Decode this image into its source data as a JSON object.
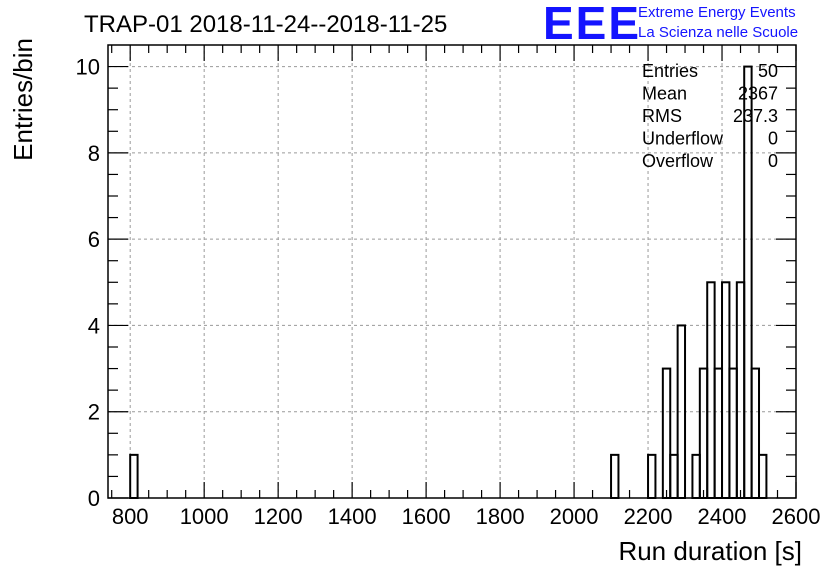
{
  "chart_data": {
    "type": "bar",
    "title": "TRAP-01 2018-11-24--2018-11-25",
    "xlabel": "Run duration [s]",
    "ylabel": "Entries/bin",
    "xlim": [
      740,
      2600
    ],
    "ylim": [
      0,
      10.5
    ],
    "xticks": [
      "800",
      "1000",
      "1200",
      "1400",
      "1600",
      "1800",
      "2000",
      "2200",
      "2400",
      "2600"
    ],
    "yticks": [
      "0",
      "2",
      "4",
      "6",
      "8",
      "10"
    ],
    "grid": true,
    "bin_width": 20,
    "bins": [
      {
        "x": 800,
        "count": 1
      },
      {
        "x": 2100,
        "count": 1
      },
      {
        "x": 2200,
        "count": 1
      },
      {
        "x": 2240,
        "count": 3
      },
      {
        "x": 2260,
        "count": 1
      },
      {
        "x": 2280,
        "count": 4
      },
      {
        "x": 2320,
        "count": 1
      },
      {
        "x": 2340,
        "count": 3
      },
      {
        "x": 2360,
        "count": 5
      },
      {
        "x": 2380,
        "count": 3
      },
      {
        "x": 2400,
        "count": 5
      },
      {
        "x": 2420,
        "count": 3
      },
      {
        "x": 2440,
        "count": 5
      },
      {
        "x": 2460,
        "count": 10
      },
      {
        "x": 2480,
        "count": 3
      },
      {
        "x": 2500,
        "count": 1
      }
    ],
    "stats": {
      "labels": [
        "Entries",
        "Mean",
        "RMS",
        "Underflow",
        "Overflow"
      ],
      "values": [
        "50",
        "2367",
        "237.3",
        "0",
        "0"
      ]
    }
  },
  "logo": {
    "mark": "EEE",
    "line1": "Extreme Energy Events",
    "line2": "La Scienza nelle Scuole",
    "color": "#1414ff"
  }
}
